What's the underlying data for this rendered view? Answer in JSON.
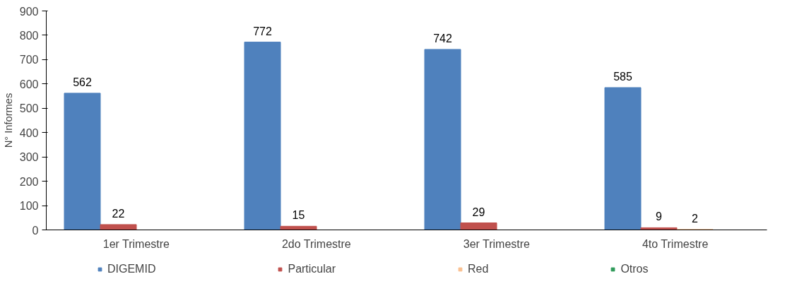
{
  "chart_data": {
    "type": "bar",
    "ylabel": "N° Informes",
    "categories": [
      "1er Trimestre",
      "2do Trimestre",
      "3er Trimestre",
      "4to  Trimestre"
    ],
    "series": [
      {
        "name": "DIGEMID",
        "color": "#4f81bd",
        "values": [
          562,
          772,
          742,
          585
        ],
        "value_labels": [
          "562",
          "772",
          "742",
          "585"
        ]
      },
      {
        "name": "Particular",
        "color": "#c0504d",
        "values": [
          22,
          15,
          29,
          9
        ],
        "value_labels": [
          "22",
          "15",
          "29",
          "9"
        ]
      },
      {
        "name": "Red",
        "color": "#fac090",
        "values": [
          null,
          null,
          null,
          2
        ],
        "value_labels": [
          null,
          null,
          null,
          "2"
        ]
      },
      {
        "name": "Otros",
        "color": "#2e9a5a",
        "values": [
          null,
          null,
          null,
          null
        ],
        "value_labels": [
          null,
          null,
          null,
          null
        ]
      }
    ],
    "ylim": [
      0,
      900
    ],
    "yticks": [
      0,
      100,
      200,
      300,
      400,
      500,
      600,
      700,
      800,
      900
    ],
    "grid": false,
    "legend": "bottom"
  }
}
